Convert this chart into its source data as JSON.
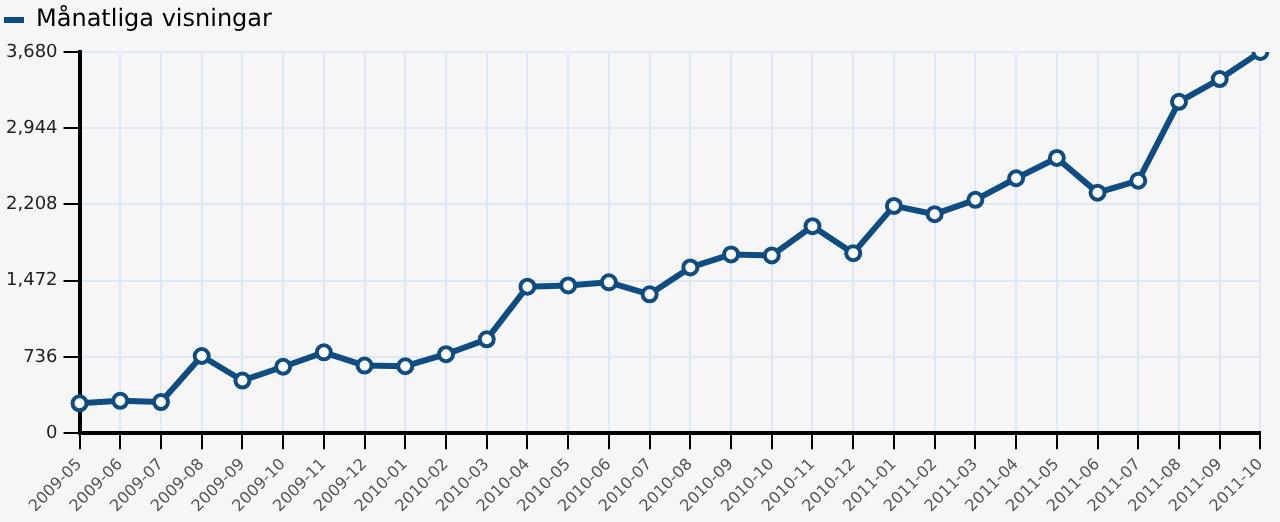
{
  "chart_data": {
    "type": "line",
    "categories": [
      "2009-05",
      "2009-06",
      "2009-07",
      "2009-08",
      "2009-09",
      "2009-10",
      "2009-11",
      "2009-12",
      "2010-01",
      "2010-02",
      "2010-03",
      "2010-04",
      "2010-05",
      "2010-06",
      "2010-07",
      "2010-08",
      "2010-09",
      "2010-10",
      "2010-11",
      "2010-12",
      "2011-01",
      "2011-02",
      "2011-03",
      "2011-04",
      "2011-05",
      "2011-06",
      "2011-07",
      "2011-08",
      "2011-09",
      "2011-10"
    ],
    "series": [
      {
        "name": "Månatliga visningar",
        "color": "#0f4c81",
        "values": [
          288,
          312,
          300,
          745,
          508,
          641,
          780,
          652,
          646,
          762,
          906,
          1414,
          1426,
          1456,
          1340,
          1600,
          1726,
          1716,
          1998,
          1738,
          2194,
          2114,
          2253,
          2461,
          2657,
          2322,
          2437,
          3199,
          3419,
          3680
        ]
      }
    ],
    "ylim": [
      0,
      3680
    ],
    "yticks": [
      0,
      736,
      {
        "value": 1472,
        "label": "1,472"
      },
      {
        "value": 2208,
        "label": "2,208"
      },
      {
        "value": 2944,
        "label": "2,944"
      },
      {
        "value": 3680,
        "label": "3,680"
      }
    ],
    "grid": true,
    "legend": "top left",
    "marker": "circle",
    "line_style": "solid"
  }
}
